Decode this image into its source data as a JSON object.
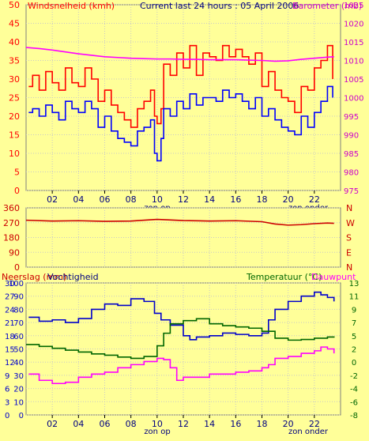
{
  "chart_data": [
    {
      "type": "line",
      "panel": "wind-barometer",
      "title": "Current last 24 hours : 05 April 2006",
      "ylabel_left": "Windsnelheid (kmh)",
      "ylabel_right": "Barometer (mb)",
      "x_ticks": [
        "02",
        "04",
        "06",
        "08",
        "10",
        "12",
        "14",
        "16",
        "18",
        "20",
        "22"
      ],
      "y_left_ticks": [
        0,
        5,
        10,
        15,
        20,
        25,
        30,
        35,
        40,
        45,
        50
      ],
      "y_right_ticks": [
        975,
        980,
        985,
        990,
        995,
        1000,
        1005,
        1010,
        1015,
        1020,
        1025
      ],
      "ylim_left": [
        0,
        50
      ],
      "ylim_right": [
        975,
        1025
      ],
      "xlim": [
        0,
        24
      ],
      "annotations": [
        "zon op",
        "zon onder"
      ],
      "series": [
        {
          "name": "Windsnelheid",
          "color": "#ff0000",
          "x": [
            0.2,
            0.5,
            1.0,
            1.5,
            2.0,
            2.5,
            3.0,
            3.5,
            4.0,
            4.5,
            5.0,
            5.5,
            6.0,
            6.5,
            7.0,
            7.5,
            8.0,
            8.5,
            9.0,
            9.5,
            9.8,
            10.0,
            10.3,
            10.5,
            11.0,
            11.5,
            12.0,
            12.5,
            13.0,
            13.5,
            14.0,
            14.5,
            15.0,
            15.5,
            16.0,
            16.5,
            17.0,
            17.5,
            18.0,
            18.5,
            19.0,
            19.5,
            20.0,
            20.5,
            21.0,
            21.5,
            22.0,
            22.5,
            23.0,
            23.4
          ],
          "values": [
            28,
            31,
            27,
            32,
            29,
            27,
            33,
            29,
            28,
            33,
            30,
            24,
            27,
            23,
            21,
            19,
            17,
            22,
            24,
            27,
            20,
            18,
            22,
            34,
            31,
            37,
            33,
            39,
            31,
            37,
            36,
            35,
            39,
            36,
            38,
            36,
            34,
            37,
            28,
            32,
            27,
            25,
            24,
            21,
            28,
            27,
            33,
            35,
            39,
            30
          ]
        },
        {
          "name": "Windstoten",
          "color": "#0000ff",
          "x": [
            0.2,
            0.5,
            1.0,
            1.5,
            2.0,
            2.5,
            3.0,
            3.5,
            4.0,
            4.5,
            5.0,
            5.5,
            6.0,
            6.5,
            7.0,
            7.5,
            8.0,
            8.5,
            9.0,
            9.5,
            9.8,
            10.0,
            10.3,
            10.5,
            11.0,
            11.5,
            12.0,
            12.5,
            13.0,
            13.5,
            14.0,
            14.5,
            15.0,
            15.5,
            16.0,
            16.5,
            17.0,
            17.5,
            18.0,
            18.5,
            19.0,
            19.5,
            20.0,
            20.5,
            21.0,
            21.5,
            22.0,
            22.5,
            23.0,
            23.4
          ],
          "values": [
            21,
            22,
            20,
            23,
            21,
            19,
            24,
            22,
            21,
            24,
            22,
            17,
            20,
            16,
            14,
            13,
            12,
            16,
            17,
            19,
            10,
            8,
            14,
            22,
            20,
            24,
            22,
            26,
            23,
            25,
            25,
            24,
            27,
            25,
            26,
            24,
            22,
            25,
            20,
            22,
            19,
            17,
            16,
            15,
            20,
            17,
            21,
            24,
            28,
            25
          ]
        },
        {
          "name": "Barometer",
          "axis": "right",
          "color": "#ff00ff",
          "x": [
            0,
            1,
            2,
            3,
            4,
            5,
            6,
            7,
            8,
            9,
            10,
            11,
            12,
            13,
            14,
            15,
            16,
            17,
            18,
            19,
            20,
            21,
            22,
            23,
            23.5
          ],
          "values": [
            1013.5,
            1013.2,
            1012.8,
            1012.3,
            1011.8,
            1011.4,
            1011.0,
            1010.8,
            1010.6,
            1010.5,
            1010.4,
            1010.4,
            1010.3,
            1010.3,
            1010.2,
            1010.2,
            1010.2,
            1010.1,
            1010.0,
            1009.8,
            1009.9,
            1010.3,
            1010.6,
            1010.9,
            1011.0
          ]
        }
      ]
    },
    {
      "type": "line",
      "panel": "wind-direction",
      "x_ticks": [
        "02",
        "04",
        "06",
        "08",
        "10",
        "12",
        "14",
        "16",
        "18",
        "20",
        "22"
      ],
      "y_left_ticks": [
        0,
        90,
        180,
        270,
        360
      ],
      "y_right_ticks": [
        "N",
        "E",
        "S",
        "W",
        "N"
      ],
      "ylim_left": [
        0,
        360
      ],
      "xlim": [
        0,
        24
      ],
      "series": [
        {
          "name": "Windrichting",
          "color": "#cc0000",
          "x": [
            0,
            2,
            4,
            6,
            8,
            10,
            12,
            14,
            16,
            18,
            19,
            20,
            21,
            22,
            23,
            23.5
          ],
          "values": [
            285,
            280,
            282,
            278,
            280,
            290,
            283,
            280,
            282,
            276,
            262,
            255,
            258,
            264,
            268,
            266
          ]
        }
      ]
    },
    {
      "type": "line",
      "panel": "humidity-temperature",
      "ylabel_left": "Neerslag (mm)",
      "ylabel_left2": "Vochtigheid",
      "ylabel_right": "Temperatuur (°C)",
      "ylabel_right2": "Dauwpunt",
      "x_ticks": [
        "02",
        "04",
        "06",
        "08",
        "10",
        "12",
        "14",
        "16",
        "18",
        "20",
        "22"
      ],
      "y_left_ticks": [
        0,
        3,
        6,
        9,
        12,
        15,
        18,
        21,
        24,
        27,
        30
      ],
      "y_left2_ticks": [
        0,
        10,
        20,
        30,
        40,
        50,
        60,
        70,
        80,
        90,
        100
      ],
      "y_right_ticks": [
        -8,
        -6,
        -4,
        -2,
        0,
        2,
        5,
        7,
        9,
        11,
        13
      ],
      "ylim_left2": [
        0,
        100
      ],
      "ylim_right": [
        -8,
        13
      ],
      "xlim": [
        0,
        24
      ],
      "annotations": [
        "zon op",
        "zon onder"
      ],
      "series": [
        {
          "name": "Vochtigheid",
          "color": "#0000cc",
          "x": [
            0.2,
            1,
            2,
            3,
            4,
            5,
            6,
            7,
            8,
            9,
            9.8,
            10.3,
            11,
            12,
            12.5,
            13,
            14,
            15,
            16,
            17,
            18,
            18.5,
            19,
            20,
            21,
            22,
            22.5,
            23,
            23.5
          ],
          "values": [
            74,
            71,
            72,
            70,
            73,
            80,
            84,
            83,
            88,
            86,
            77,
            72,
            68,
            60,
            57,
            59,
            60,
            62,
            61,
            60,
            62,
            72,
            80,
            86,
            90,
            93,
            91,
            89,
            86
          ]
        },
        {
          "name": "Temperatuur",
          "color": "#006600",
          "x": [
            0,
            1,
            2,
            3,
            4,
            5,
            6,
            7,
            8,
            9,
            10,
            10.5,
            11,
            12,
            13,
            14,
            15,
            16,
            17,
            18,
            19,
            20,
            21,
            22,
            23,
            23.5
          ],
          "values": [
            3.2,
            2.9,
            2.6,
            2.3,
            2.0,
            1.7,
            1.5,
            1.2,
            1.0,
            1.3,
            3.0,
            5.0,
            6.5,
            7.0,
            7.3,
            6.5,
            6.2,
            6.0,
            5.8,
            5.3,
            4.2,
            3.9,
            4.0,
            4.2,
            4.4,
            4.5
          ]
        },
        {
          "name": "Dauwpunt",
          "color": "#ff00ff",
          "x": [
            0.2,
            1,
            2,
            3,
            4,
            5,
            6,
            7,
            8,
            9,
            10,
            10.5,
            11,
            11.5,
            12,
            13,
            14,
            15,
            16,
            17,
            18,
            18.5,
            19,
            20,
            21,
            22,
            22.5,
            23,
            23.5
          ],
          "values": [
            -1.5,
            -2.5,
            -3.0,
            -2.8,
            -2.0,
            -1.5,
            -1.2,
            -0.5,
            0.0,
            0.5,
            1.0,
            0.8,
            -0.5,
            -2.5,
            -2.0,
            -2.0,
            -1.5,
            -1.5,
            -1.2,
            -1.0,
            -0.5,
            0.0,
            1.0,
            1.3,
            1.8,
            2.2,
            2.8,
            2.5,
            1.8
          ]
        }
      ]
    }
  ]
}
